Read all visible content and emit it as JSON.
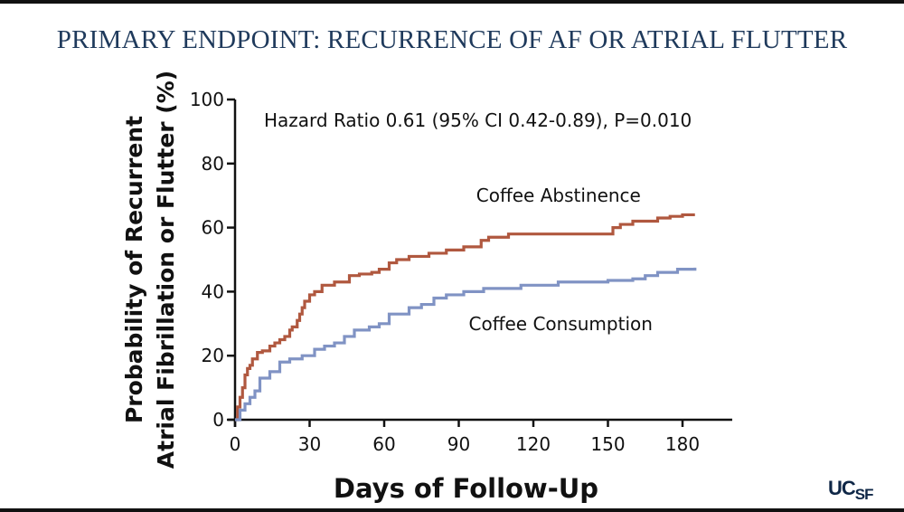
{
  "slide": {
    "title": "PRIMARY ENDPOINT: RECURRENCE OF AF OR ATRIAL FLUTTER",
    "logo_main": "UC",
    "logo_sub": "SF"
  },
  "colors": {
    "abstinence": "#b0583f",
    "consumption": "#8093c4",
    "axis": "#111111",
    "title": "#1f3a5c"
  },
  "chart_data": {
    "type": "line",
    "step": true,
    "title": "",
    "xlabel": "Days of Follow-Up",
    "ylabel_line1": "Probability of Recurrent",
    "ylabel_line2": "Atrial Fibrillation or Flutter (%)",
    "xlim": [
      0,
      200
    ],
    "ylim": [
      0,
      100
    ],
    "xticks": [
      0,
      30,
      60,
      90,
      120,
      150,
      180
    ],
    "yticks": [
      0,
      20,
      40,
      60,
      80,
      100
    ],
    "annotation": "Hazard Ratio 0.61 (95% CI 0.42-0.89), P=0.010",
    "series": [
      {
        "name": "Coffee Abstinence",
        "label_at": [
          97,
          70
        ],
        "x": [
          0,
          1,
          2,
          3,
          4,
          5,
          6,
          7,
          9,
          11,
          14,
          16,
          18,
          20,
          22,
          23,
          25,
          26,
          27,
          28,
          30,
          32,
          35,
          40,
          46,
          50,
          55,
          58,
          62,
          65,
          70,
          78,
          85,
          92,
          99,
          102,
          110,
          130,
          152,
          155,
          160,
          170,
          175,
          180,
          185
        ],
        "y": [
          0,
          4,
          7,
          10,
          14,
          16,
          17,
          19,
          21,
          21.5,
          23,
          24,
          25,
          26,
          28,
          29,
          31,
          33,
          35,
          37,
          39,
          40,
          42,
          43,
          45,
          45.5,
          46,
          47,
          49,
          50,
          51,
          52,
          53,
          54,
          56,
          57,
          58,
          58,
          60,
          61,
          62,
          63,
          63.5,
          64,
          64
        ]
      },
      {
        "name": "Coffee Consumption",
        "label_at": [
          94,
          30
        ],
        "x": [
          0,
          2,
          4,
          6,
          8,
          10,
          14,
          18,
          22,
          27,
          32,
          36,
          40,
          44,
          48,
          54,
          58,
          62,
          70,
          75,
          80,
          85,
          92,
          100,
          115,
          130,
          150,
          160,
          165,
          170,
          178,
          185
        ],
        "y": [
          0,
          3,
          5,
          7,
          9,
          13,
          15,
          18,
          19,
          20,
          22,
          23,
          24,
          26,
          28,
          29,
          30,
          33,
          35,
          36,
          38,
          39,
          40,
          41,
          42,
          43,
          43.5,
          44,
          45,
          46,
          47,
          47.5
        ]
      }
    ]
  }
}
